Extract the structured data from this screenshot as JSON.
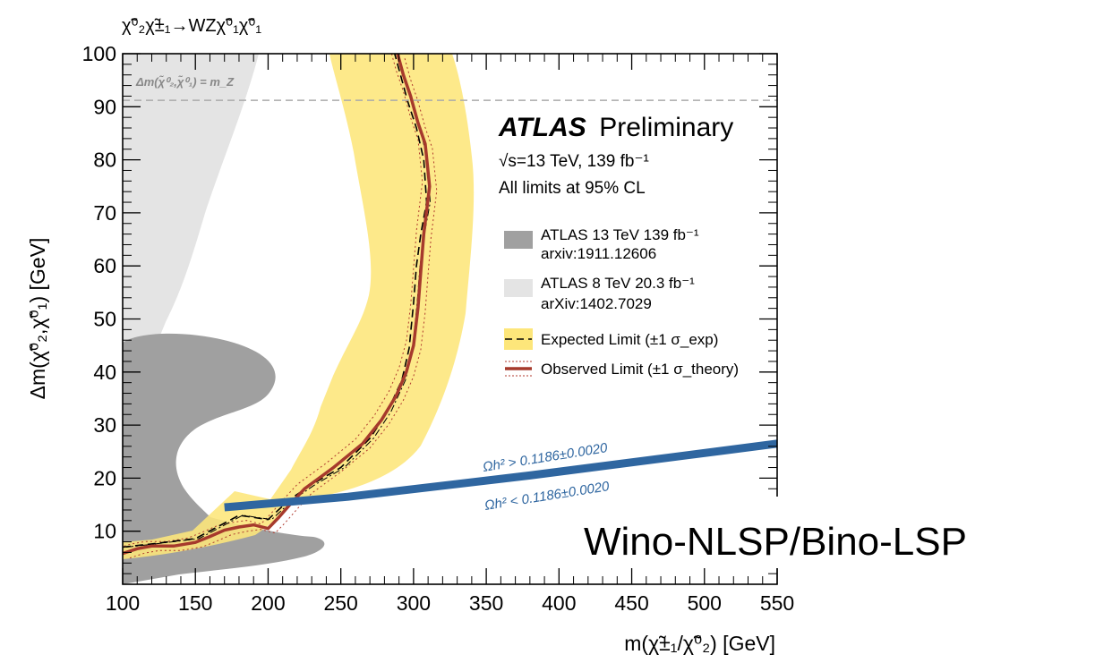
{
  "chart_data": {
    "type": "line",
    "process_label": "χ̃⁰₂χ̃±₁→WZχ̃⁰₁χ̃⁰₁",
    "xlabel": "m(χ̃±₁/χ̃⁰₂) [GeV]",
    "ylabel": "Δm(χ̃⁰₂,χ̃⁰₁) [GeV]",
    "xlim": [
      100,
      550
    ],
    "ylim": [
      0,
      100
    ],
    "x_ticks": [
      "100",
      "150",
      "200",
      "250",
      "300",
      "350",
      "400",
      "450",
      "500",
      "550"
    ],
    "y_ticks": [
      "10",
      "20",
      "30",
      "40",
      "50",
      "60",
      "70",
      "80",
      "90",
      "100"
    ],
    "grid": false,
    "experiment": "ATLAS",
    "status": "Preliminary",
    "energy_lumi": "√s=13 TeV, 139 fb⁻¹",
    "cl_text": "All limits at 95% CL",
    "mz_line_label": "Δm(χ̃⁰₂,χ̃⁰₁) = m_Z",
    "mz_value": 91.2,
    "relic_above": "Ωh² > 0.1186±0.0020",
    "relic_below": "Ωh² < 0.1186±0.0020",
    "scenario": "Wino-NLSP/Bino-LSP",
    "colors": {
      "expected_band": "#fde67a",
      "observed": "#a63a2c",
      "atlas13": "#a0a0a0",
      "atlas8": "#e4e4e4",
      "relic": "#2f66a0",
      "mz_line": "#aaaaaa"
    },
    "legend": [
      {
        "id": "atlas13",
        "label": "ATLAS 13 TeV 139 fb⁻¹",
        "label2": "arxiv:1911.12606"
      },
      {
        "id": "atlas8",
        "label": "ATLAS 8 TeV 20.3 fb⁻¹",
        "label2": "arXiv:1402.7029"
      },
      {
        "id": "expected",
        "label": "Expected Limit (±1 σ_exp)"
      },
      {
        "id": "observed",
        "label": "Observed Limit (±1 σ_theory)"
      }
    ],
    "series": [
      {
        "name": "Observed Limit",
        "x": [
          100,
          110,
          120,
          135,
          150,
          160,
          170,
          180,
          190,
          200,
          207,
          215,
          225,
          245,
          265,
          278,
          288,
          295,
          300,
          303,
          305,
          307,
          311,
          308,
          303,
          298,
          293,
          289
        ],
        "y": [
          5.8,
          6.7,
          7.2,
          7.2,
          7.9,
          9.0,
          10.2,
          10.8,
          11.2,
          10.5,
          12.5,
          15.0,
          18.0,
          22.0,
          26.5,
          31.0,
          35.5,
          40.0,
          45.0,
          52.0,
          59.0,
          66.0,
          75.0,
          83.0,
          87.0,
          92.0,
          96.0,
          100.0
        ]
      },
      {
        "name": "Expected Limit",
        "x": [
          100,
          120,
          150,
          165,
          180,
          200,
          215,
          230,
          250,
          270,
          282,
          292,
          297,
          300,
          302,
          305,
          309,
          307,
          302,
          296,
          291,
          287
        ],
        "y": [
          7.0,
          7.6,
          8.6,
          10.8,
          13.0,
          12.2,
          16.0,
          18.8,
          22.0,
          27.5,
          32.5,
          38.5,
          44.5,
          53.0,
          60.0,
          66.0,
          72.0,
          80.0,
          86.0,
          91.0,
          96.0,
          100.0
        ]
      },
      {
        "name": "ATLAS 13 TeV 139 fb-1",
        "type": "area",
        "x": [
          100,
          110,
          125,
          140,
          155,
          162,
          158,
          155,
          160,
          175,
          195,
          200,
          185,
          165,
          155,
          200,
          240,
          245,
          230,
          200,
          150,
          110,
          100
        ],
        "y": [
          1.0,
          1.0,
          42.0,
          46.0,
          47.0,
          44.0,
          40.0,
          35.0,
          28.0,
          22.0,
          20.0,
          17.0,
          15.0,
          14.0,
          11.0,
          8.0,
          7.0,
          6.0,
          4.5,
          3.5,
          2.5,
          2.0,
          2.0
        ]
      },
      {
        "name": "ATLAS 8 TeV 20.3 fb-1",
        "type": "area",
        "x": [
          100,
          250,
          225,
          195,
          180,
          170,
          160,
          155,
          152,
          100
        ],
        "y": [
          100,
          100,
          92,
          80,
          70,
          60,
          52,
          44,
          30,
          30
        ]
      },
      {
        "name": "Relic density",
        "x": [
          170,
          255,
          380,
          550
        ],
        "y": [
          14.5,
          16.5,
          20.5,
          26.5
        ]
      }
    ]
  }
}
